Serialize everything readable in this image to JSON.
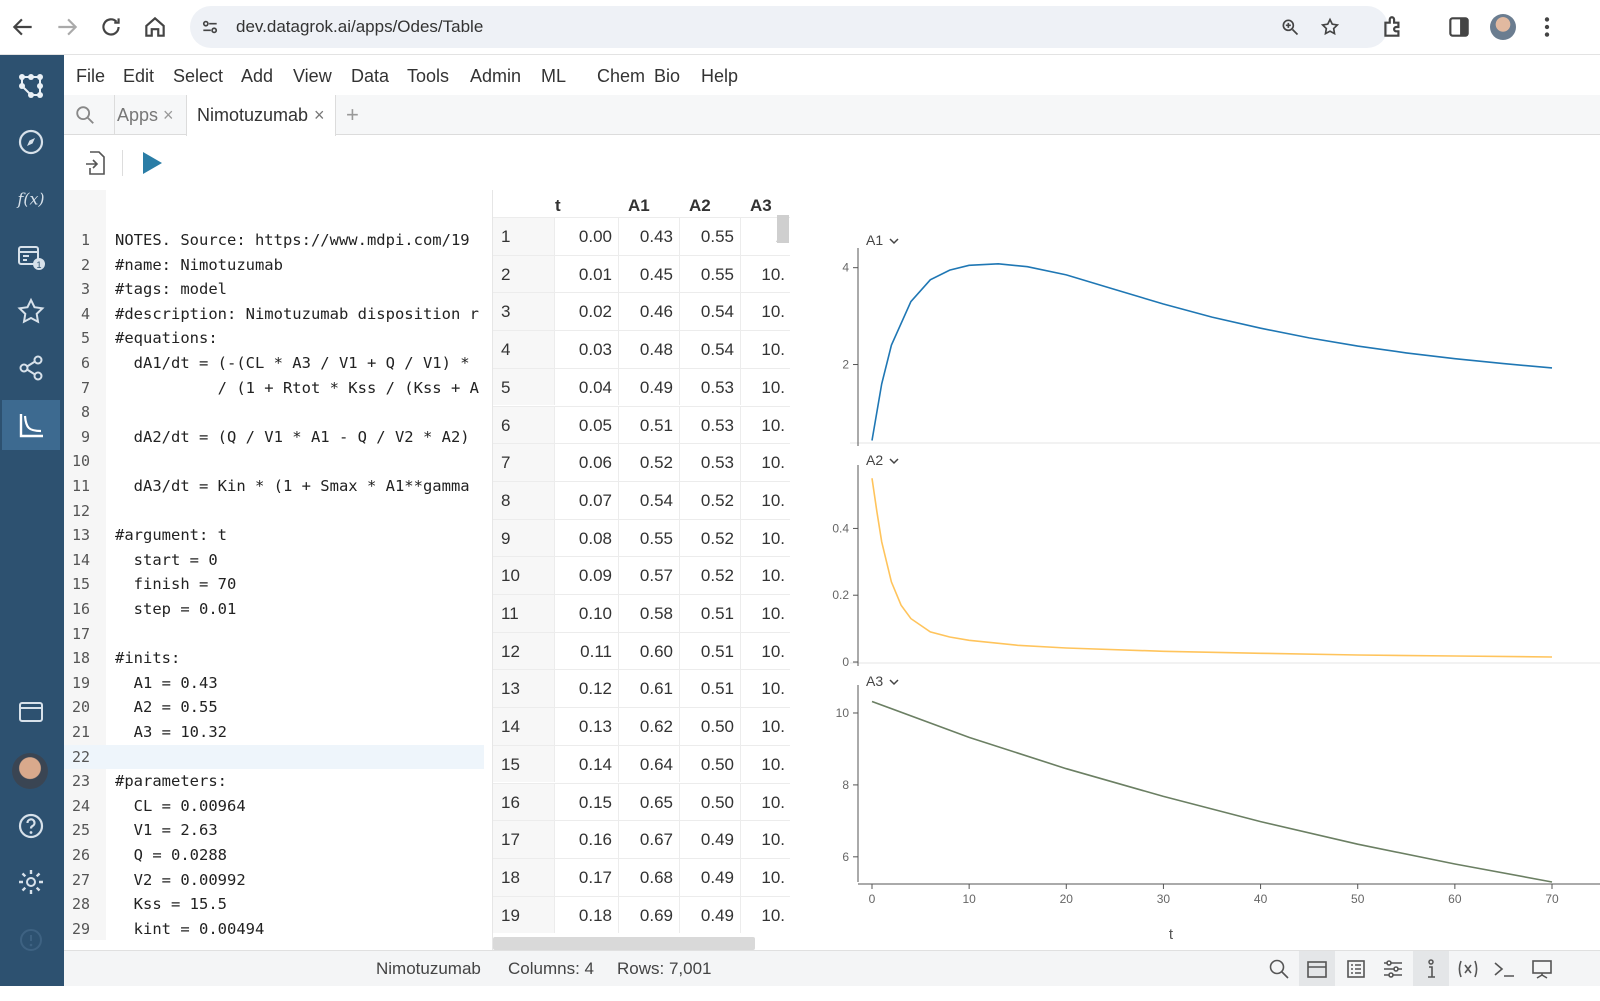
{
  "browser": {
    "url": "dev.datagrok.ai/apps/Odes/Table"
  },
  "menu": [
    "File",
    "Edit",
    "Select",
    "Add",
    "View",
    "Data",
    "Tools",
    "Admin",
    "ML",
    "Chem",
    "Bio",
    "Help"
  ],
  "tabs": {
    "apps": "Apps",
    "active": "Nimotuzumab",
    "add": "+"
  },
  "sidebar_badge": "1",
  "code": [
    {
      "n": "1",
      "t": "NOTES. Source: https://www.mdpi.com/19"
    },
    {
      "n": "2",
      "t": "#name: Nimotuzumab"
    },
    {
      "n": "3",
      "t": "#tags: model"
    },
    {
      "n": "4",
      "t": "#description: Nimotuzumab disposition r"
    },
    {
      "n": "5",
      "t": "#equations:"
    },
    {
      "n": "6",
      "t": "  dA1/dt = (-(CL * A3 / V1 + Q / V1) *"
    },
    {
      "n": "7",
      "t": "           / (1 + Rtot * Kss / (Kss + A"
    },
    {
      "n": "8",
      "t": ""
    },
    {
      "n": "9",
      "t": "  dA2/dt = (Q / V1 * A1 - Q / V2 * A2)"
    },
    {
      "n": "10",
      "t": ""
    },
    {
      "n": "11",
      "t": "  dA3/dt = Kin * (1 + Smax * A1**gamma"
    },
    {
      "n": "12",
      "t": ""
    },
    {
      "n": "13",
      "t": "#argument: t"
    },
    {
      "n": "14",
      "t": "  start = 0"
    },
    {
      "n": "15",
      "t": "  finish = 70"
    },
    {
      "n": "16",
      "t": "  step = 0.01"
    },
    {
      "n": "17",
      "t": ""
    },
    {
      "n": "18",
      "t": "#inits:"
    },
    {
      "n": "19",
      "t": "  A1 = 0.43"
    },
    {
      "n": "20",
      "t": "  A2 = 0.55"
    },
    {
      "n": "21",
      "t": "  A3 = 10.32"
    },
    {
      "n": "22",
      "t": ""
    },
    {
      "n": "23",
      "t": "#parameters:"
    },
    {
      "n": "24",
      "t": "  CL = 0.00964"
    },
    {
      "n": "25",
      "t": "  V1 = 2.63"
    },
    {
      "n": "26",
      "t": "  Q = 0.0288"
    },
    {
      "n": "27",
      "t": "  V2 = 0.00992"
    },
    {
      "n": "28",
      "t": "  Kss = 15.5"
    },
    {
      "n": "29",
      "t": "  kint = 0.00494"
    }
  ],
  "grid": {
    "columns": [
      "t",
      "A1",
      "A2",
      "A3"
    ],
    "rows": [
      [
        "1",
        "0.00",
        "0.43",
        "0.55",
        "1"
      ],
      [
        "2",
        "0.01",
        "0.45",
        "0.55",
        "10."
      ],
      [
        "3",
        "0.02",
        "0.46",
        "0.54",
        "10."
      ],
      [
        "4",
        "0.03",
        "0.48",
        "0.54",
        "10."
      ],
      [
        "5",
        "0.04",
        "0.49",
        "0.53",
        "10."
      ],
      [
        "6",
        "0.05",
        "0.51",
        "0.53",
        "10."
      ],
      [
        "7",
        "0.06",
        "0.52",
        "0.53",
        "10."
      ],
      [
        "8",
        "0.07",
        "0.54",
        "0.52",
        "10."
      ],
      [
        "9",
        "0.08",
        "0.55",
        "0.52",
        "10."
      ],
      [
        "10",
        "0.09",
        "0.57",
        "0.52",
        "10."
      ],
      [
        "11",
        "0.10",
        "0.58",
        "0.51",
        "10."
      ],
      [
        "12",
        "0.11",
        "0.60",
        "0.51",
        "10."
      ],
      [
        "13",
        "0.12",
        "0.61",
        "0.51",
        "10."
      ],
      [
        "14",
        "0.13",
        "0.62",
        "0.50",
        "10."
      ],
      [
        "15",
        "0.14",
        "0.64",
        "0.50",
        "10."
      ],
      [
        "16",
        "0.15",
        "0.65",
        "0.50",
        "10."
      ],
      [
        "17",
        "0.16",
        "0.67",
        "0.49",
        "10."
      ],
      [
        "18",
        "0.17",
        "0.68",
        "0.49",
        "10."
      ],
      [
        "19",
        "0.18",
        "0.69",
        "0.49",
        "10."
      ]
    ]
  },
  "chart_data": {
    "type": "line",
    "xlabel": "t",
    "xlim": [
      0,
      70
    ],
    "x_ticks": [
      "0",
      "10",
      "20",
      "30",
      "40",
      "50",
      "60",
      "70"
    ],
    "panels": [
      {
        "name": "A1",
        "color": "#1f77b4",
        "ylim": [
          0.4,
          4.2
        ],
        "y_ticks": [
          "4",
          "2"
        ],
        "x": [
          0,
          1,
          2,
          4,
          6,
          8,
          10,
          13,
          16,
          20,
          25,
          30,
          35,
          40,
          45,
          50,
          55,
          60,
          65,
          70
        ],
        "y": [
          0.43,
          1.6,
          2.4,
          3.3,
          3.75,
          3.95,
          4.05,
          4.08,
          4.02,
          3.85,
          3.55,
          3.25,
          2.98,
          2.75,
          2.55,
          2.38,
          2.24,
          2.12,
          2.02,
          1.93
        ]
      },
      {
        "name": "A2",
        "color": "#ffc45c",
        "ylim": [
          0,
          0.56
        ],
        "y_ticks": [
          "0.4",
          "0.2",
          "0"
        ],
        "x": [
          0,
          0.5,
          1,
          2,
          3,
          4,
          6,
          8,
          10,
          15,
          20,
          30,
          40,
          50,
          60,
          70
        ],
        "y": [
          0.55,
          0.45,
          0.36,
          0.24,
          0.17,
          0.13,
          0.09,
          0.075,
          0.065,
          0.05,
          0.042,
          0.032,
          0.026,
          0.021,
          0.018,
          0.015
        ]
      },
      {
        "name": "A3",
        "color": "#6b7f63",
        "ylim": [
          5.3,
          10.5
        ],
        "y_ticks": [
          "10",
          "8",
          "6"
        ],
        "x": [
          0,
          10,
          20,
          30,
          40,
          50,
          60,
          70
        ],
        "y": [
          10.32,
          9.32,
          8.45,
          7.68,
          6.98,
          6.35,
          5.8,
          5.3
        ]
      }
    ]
  },
  "status": {
    "name": "Nimotuzumab",
    "columns": "Columns: 4",
    "rows": "Rows: 7,001"
  }
}
